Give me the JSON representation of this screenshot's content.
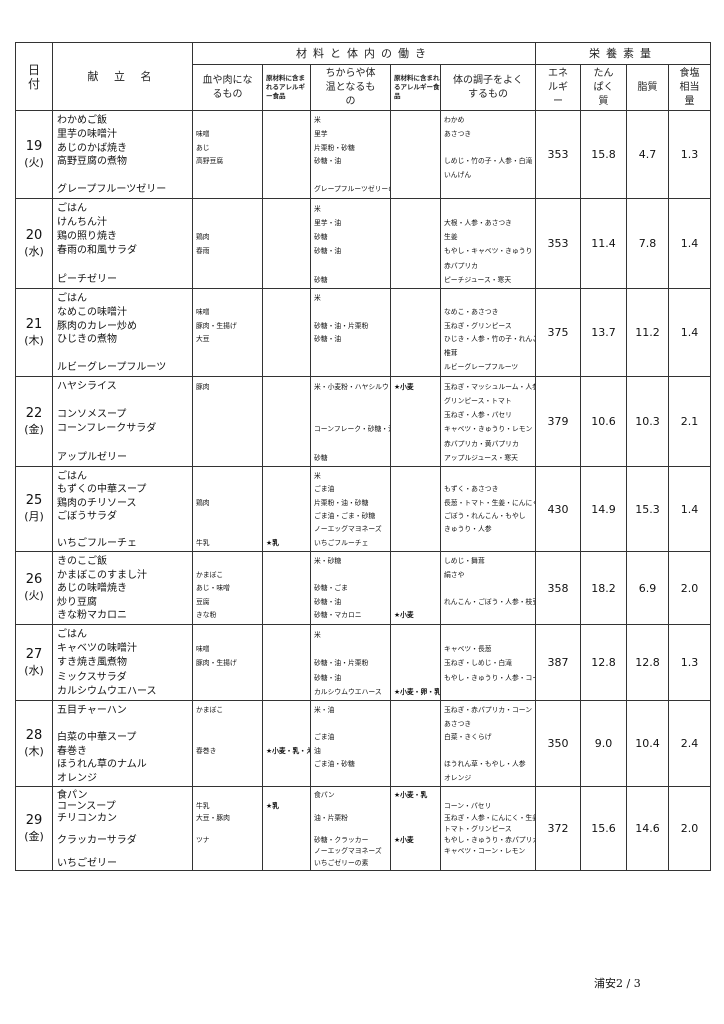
{
  "header": {
    "date": "日付",
    "menu": "献 立 名",
    "ingredients_group": "材料と体内の働き",
    "nutrition_group": "栄養素量",
    "blood": "血や肉になるもの",
    "allergen": "原材料に含まれるアレルギー食品",
    "energy": "ちからや体温となるもの",
    "body": "体の調子をよくするもの",
    "kcal": "エネルギー",
    "protein": "たんぱく質",
    "fat": "脂質",
    "salt": "食塩相当量"
  },
  "rows": [
    {
      "day": "19",
      "dow": "(火)",
      "menu": [
        "わかめご飯",
        "里芋の味噌汁",
        "あじのかば焼き",
        "高野豆腐の煮物",
        "",
        "グレープフルーツゼリー"
      ],
      "blood": [
        "",
        "味噌",
        "あじ",
        "高野豆腐"
      ],
      "allergen1": [],
      "energy": [
        "米",
        "里芋",
        "片栗粉・砂糖",
        "砂糖・油",
        "",
        "グレープフルーツゼリーの素"
      ],
      "allergen2": [],
      "body": [
        "わかめ",
        "あさつき",
        "",
        "しめじ・竹の子・人参・白滝",
        "いんげん"
      ],
      "kcal": "353",
      "protein": "15.8",
      "fat": "4.7",
      "salt": "1.3"
    },
    {
      "day": "20",
      "dow": "(水)",
      "menu": [
        "ごはん",
        "けんちん汁",
        "鶏の照り焼き",
        "春雨の和風サラダ",
        "",
        "ピーチゼリー"
      ],
      "blood": [
        "",
        "",
        "鶏肉",
        "春雨"
      ],
      "allergen1": [],
      "energy": [
        "米",
        "里芋・油",
        "砂糖",
        "砂糖・油",
        "",
        "砂糖"
      ],
      "allergen2": [],
      "body": [
        "",
        "大根・人参・あさつき",
        "生姜",
        "もやし・キャベツ・きゅうり",
        "赤パプリカ",
        "ピーチジュース・寒天"
      ],
      "kcal": "353",
      "protein": "11.4",
      "fat": "7.8",
      "salt": "1.4"
    },
    {
      "day": "21",
      "dow": "(木)",
      "menu": [
        "ごはん",
        "なめこの味噌汁",
        "豚肉のカレー炒め",
        "ひじきの煮物",
        "",
        "ルビーグレープフルーツ"
      ],
      "blood": [
        "",
        "味噌",
        "豚肉・生揚げ",
        "大豆"
      ],
      "allergen1": [],
      "energy": [
        "米",
        "",
        "砂糖・油・片栗粉",
        "砂糖・油"
      ],
      "allergen2": [],
      "body": [
        "",
        "なめこ・あさつき",
        "玉ねぎ・グリンピース",
        "ひじき・人参・竹の子・れんこん",
        "椎茸",
        "ルビーグレープフルーツ"
      ],
      "kcal": "375",
      "protein": "13.7",
      "fat": "11.2",
      "salt": "1.4"
    },
    {
      "day": "22",
      "dow": "(金)",
      "menu": [
        "ハヤシライス",
        "",
        "コンソメスープ",
        "コーンフレークサラダ",
        "",
        "アップルゼリー"
      ],
      "blood": [
        "豚肉"
      ],
      "allergen1": [],
      "energy": [
        "米・小麦粉・ハヤシルウ",
        "",
        "",
        "コーンフレーク・砂糖・油",
        "",
        "砂糖"
      ],
      "allergen2": [
        "★小麦"
      ],
      "body": [
        "玉ねぎ・マッシュルーム・人参",
        "グリンピース・トマト",
        "玉ねぎ・人参・パセリ",
        "キャベツ・きゅうり・レモン",
        "赤パプリカ・黄パプリカ",
        "アップルジュース・寒天"
      ],
      "kcal": "379",
      "protein": "10.6",
      "fat": "10.3",
      "salt": "2.1"
    },
    {
      "day": "25",
      "dow": "(月)",
      "menu": [
        "ごはん",
        "もずくの中華スープ",
        "鶏肉のチリソース",
        "ごぼうサラダ",
        "",
        "いちごフルーチェ"
      ],
      "blood": [
        "",
        "",
        "鶏肉",
        "",
        "",
        "牛乳"
      ],
      "allergen1": [
        "",
        "",
        "",
        "",
        "",
        "★乳"
      ],
      "energy": [
        "米",
        "ごま油",
        "片栗粉・油・砂糖",
        "ごま油・ごま・砂糖",
        "ノーエッグマヨネーズ",
        "いちごフルーチェ"
      ],
      "allergen2": [],
      "body": [
        "",
        "もずく・あさつき",
        "長葱・トマト・生姜・にんにく",
        "ごぼう・れんこん・もやし",
        "きゅうり・人参"
      ],
      "kcal": "430",
      "protein": "14.9",
      "fat": "15.3",
      "salt": "1.4"
    },
    {
      "day": "26",
      "dow": "(火)",
      "menu": [
        "きのこご飯",
        "かまぼこのすまし汁",
        "あじの味噌焼き",
        "炒り豆腐",
        "きな粉マカロニ"
      ],
      "blood": [
        "",
        "かまぼこ",
        "あじ・味噌",
        "豆腐",
        "きな粉"
      ],
      "allergen1": [],
      "energy": [
        "米・砂糖",
        "",
        "砂糖・ごま",
        "砂糖・油",
        "砂糖・マカロニ"
      ],
      "allergen2": [
        "",
        "",
        "",
        "",
        "★小麦"
      ],
      "body": [
        "しめじ・舞茸",
        "絹さや",
        "",
        "れんこん・ごぼう・人参・枝豆"
      ],
      "kcal": "358",
      "protein": "18.2",
      "fat": "6.9",
      "salt": "2.0"
    },
    {
      "day": "27",
      "dow": "(水)",
      "menu": [
        "ごはん",
        "キャベツの味噌汁",
        "すき焼き風煮物",
        "ミックスサラダ",
        "カルシウムウエハース"
      ],
      "blood": [
        "",
        "味噌",
        "豚肉・生揚げ"
      ],
      "allergen1": [],
      "energy": [
        "米",
        "",
        "砂糖・油・片栗粉",
        "砂糖・油",
        "カルシウムウエハース"
      ],
      "allergen2": [
        "",
        "",
        "",
        "",
        "★小麦・卵・乳"
      ],
      "body": [
        "",
        "キャベツ・長葱",
        "玉ねぎ・しめじ・白滝",
        "もやし・きゅうり・人参・コーン"
      ],
      "kcal": "387",
      "protein": "12.8",
      "fat": "12.8",
      "salt": "1.3"
    },
    {
      "day": "28",
      "dow": "(木)",
      "menu": [
        "五目チャーハン",
        "",
        "白菜の中華スープ",
        "春巻き",
        "ほうれん草のナムル",
        "オレンジ"
      ],
      "blood": [
        "かまぼこ",
        "",
        "",
        "春巻き"
      ],
      "allergen1": [
        "",
        "",
        "",
        "★小麦・乳・えび"
      ],
      "energy": [
        "米・油",
        "",
        "ごま油",
        "油",
        "ごま油・砂糖"
      ],
      "allergen2": [],
      "body": [
        "玉ねぎ・赤パプリカ・コーン",
        "あさつき",
        "白菜・きくらげ",
        "",
        "ほうれん草・もやし・人参",
        "オレンジ"
      ],
      "kcal": "350",
      "protein": "9.0",
      "fat": "10.4",
      "salt": "2.4"
    },
    {
      "day": "29",
      "dow": "(金)",
      "menu": [
        "食パン",
        "コーンスープ",
        "チリコンカン",
        "",
        "クラッカーサラダ",
        "",
        "いちごゼリー"
      ],
      "blood": [
        "",
        "牛乳",
        "大豆・豚肉",
        "",
        "ツナ"
      ],
      "allergen1": [
        "",
        "★乳"
      ],
      "energy": [
        "食パン",
        "",
        "油・片栗粉",
        "",
        "砂糖・クラッカー",
        "ノーエッグマヨネーズ",
        "いちごゼリーの素"
      ],
      "allergen2": [
        "★小麦・乳",
        "",
        "",
        "",
        "★小麦"
      ],
      "body": [
        "",
        "コーン・パセリ",
        "玉ねぎ・人参・にんにく・生姜",
        "トマト・グリンピース",
        "もやし・きゅうり・赤パプリカ",
        "キャベツ・コーン・レモン"
      ],
      "kcal": "372",
      "protein": "15.6",
      "fat": "14.6",
      "salt": "2.0"
    }
  ],
  "footer": "浦安2 / 3"
}
